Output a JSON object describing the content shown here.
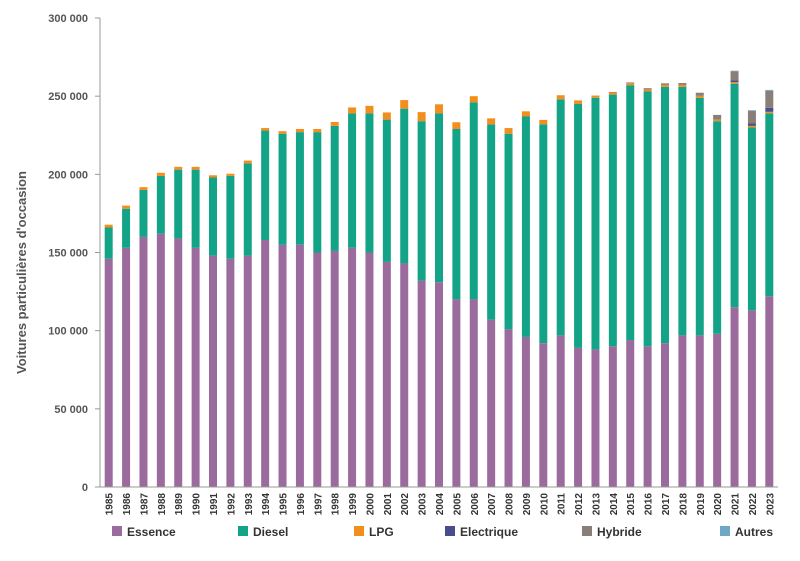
{
  "chart_data": {
    "type": "bar",
    "stacked": true,
    "ylabel": "Voitures particulières d'occasion",
    "xlabel": "",
    "ylim": [
      0,
      300000
    ],
    "yticks": [
      0,
      50000,
      100000,
      150000,
      200000,
      250000,
      300000
    ],
    "ytick_labels": [
      "0",
      "50 000",
      "100 000",
      "150 000",
      "200 000",
      "250 000",
      "300 000"
    ],
    "grid": false,
    "legend_position": "bottom",
    "categories": [
      "1985",
      "1986",
      "1987",
      "1988",
      "1989",
      "1990",
      "1991",
      "1992",
      "1993",
      "1994",
      "1995",
      "1996",
      "1997",
      "1998",
      "1999",
      "2000",
      "2001",
      "2002",
      "2003",
      "2004",
      "2005",
      "2006",
      "2007",
      "2008",
      "2009",
      "2010",
      "2011",
      "2012",
      "2013",
      "2014",
      "2015",
      "2016",
      "2017",
      "2018",
      "2019",
      "2020",
      "2021",
      "2022",
      "2023"
    ],
    "series": [
      {
        "name": "Essence",
        "color": "#9b6b9e",
        "values": [
          146000,
          153000,
          160000,
          162000,
          159000,
          153000,
          148000,
          146000,
          148000,
          158000,
          155000,
          155000,
          150000,
          151000,
          153000,
          150000,
          144000,
          143000,
          132000,
          131000,
          120000,
          120000,
          107000,
          101000,
          96000,
          92000,
          97000,
          89000,
          88000,
          90000,
          94000,
          90000,
          92000,
          97000,
          97000,
          98000,
          115000,
          113000,
          122000
        ]
      },
      {
        "name": "Diesel",
        "color": "#13a386",
        "values": [
          20000,
          25000,
          30000,
          37000,
          44000,
          50000,
          50000,
          53000,
          59000,
          70000,
          71000,
          72000,
          77000,
          80000,
          86000,
          89000,
          91000,
          99000,
          102000,
          108000,
          109000,
          126000,
          125000,
          125000,
          141000,
          140000,
          151000,
          156000,
          161000,
          161000,
          163000,
          163000,
          164000,
          159000,
          152000,
          136000,
          143000,
          117000,
          117000
        ]
      },
      {
        "name": "LPG",
        "color": "#f28e1e",
        "values": [
          1800,
          2000,
          1800,
          2000,
          1800,
          1800,
          1400,
          1400,
          1800,
          1600,
          1600,
          2000,
          2000,
          2500,
          3800,
          4800,
          4600,
          5500,
          5800,
          5800,
          4300,
          4000,
          3800,
          3600,
          3300,
          2800,
          2600,
          2300,
          1400,
          1400,
          1300,
          1300,
          1200,
          1200,
          1200,
          1000,
          1000,
          1000,
          1000
        ]
      },
      {
        "name": "Electrique",
        "color": "#4a4d8c",
        "values": [
          0,
          0,
          0,
          0,
          0,
          0,
          0,
          0,
          0,
          0,
          0,
          0,
          0,
          0,
          0,
          0,
          0,
          0,
          0,
          0,
          0,
          0,
          0,
          0,
          0,
          0,
          0,
          0,
          0,
          0,
          0,
          0,
          0,
          0,
          0,
          0,
          1000,
          1500,
          2500
        ]
      },
      {
        "name": "Hybride",
        "color": "#8a7f78",
        "values": [
          0,
          0,
          0,
          0,
          0,
          0,
          0,
          0,
          0,
          0,
          0,
          0,
          0,
          0,
          0,
          0,
          0,
          0,
          0,
          0,
          0,
          0,
          0,
          0,
          0,
          0,
          0,
          0,
          0,
          300,
          500,
          800,
          1000,
          1200,
          2000,
          3000,
          6000,
          8000,
          11000
        ]
      },
      {
        "name": "Autres",
        "color": "#6fa8c4",
        "values": [
          0,
          0,
          0,
          0,
          0,
          0,
          0,
          0,
          0,
          0,
          0,
          0,
          0,
          0,
          0,
          0,
          0,
          0,
          0,
          0,
          0,
          0,
          0,
          0,
          0,
          0,
          0,
          0,
          0,
          0,
          0,
          0,
          0,
          0,
          0,
          0,
          300,
          500,
          500
        ]
      }
    ]
  }
}
